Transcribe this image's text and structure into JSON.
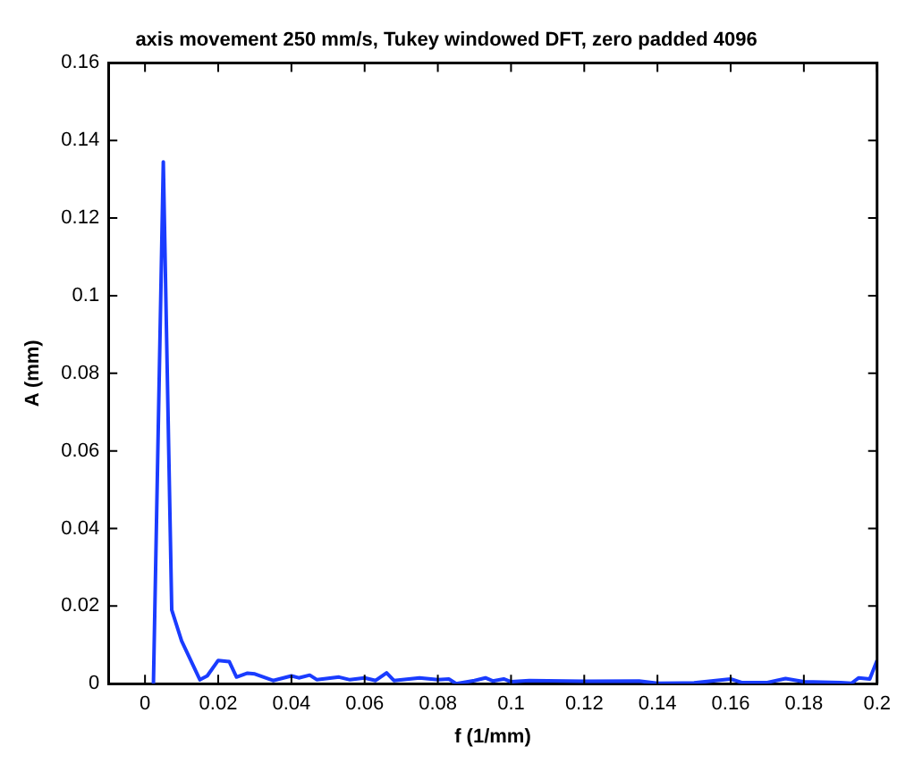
{
  "chart_data": {
    "type": "line",
    "title": "axis movement 250 mm/s, Tukey windowed DFT, zero padded 4096",
    "xlabel": "f (1/mm)",
    "ylabel": "A (mm)",
    "series": [
      {
        "color": "#1a3cff",
        "x": [
          0.0023,
          0.005,
          0.0073,
          0.01,
          0.015,
          0.017,
          0.02,
          0.023,
          0.025,
          0.028,
          0.03,
          0.035,
          0.04,
          0.042,
          0.045,
          0.047,
          0.053,
          0.056,
          0.06,
          0.063,
          0.066,
          0.068,
          0.075,
          0.08,
          0.083,
          0.085,
          0.09,
          0.093,
          0.095,
          0.098,
          0.1,
          0.105,
          0.12,
          0.135,
          0.14,
          0.15,
          0.16,
          0.163,
          0.17,
          0.175,
          0.18,
          0.19,
          0.193,
          0.195,
          0.198,
          0.2
        ],
        "values": [
          0,
          0.1345,
          0.019,
          0.011,
          0.001,
          0.002,
          0.006,
          0.0057,
          0.0017,
          0.0027,
          0.0025,
          0.0008,
          0.002,
          0.0015,
          0.0022,
          0.001,
          0.0017,
          0.001,
          0.0015,
          0.0008,
          0.0028,
          0.0008,
          0.0015,
          0.001,
          0.0012,
          0,
          0.0008,
          0.0015,
          0.0007,
          0.0012,
          0.0005,
          0.0008,
          0.0006,
          0.0007,
          0.0001,
          0.0002,
          0.0012,
          0.0003,
          0.0003,
          0.0013,
          0.0005,
          0.0003,
          0.0001,
          0.0015,
          0.0012,
          0.006
        ]
      }
    ],
    "xlim": [
      -0.01,
      0.2
    ],
    "xticks": [
      0,
      0.02,
      0.04,
      0.06,
      0.08,
      0.1,
      0.12,
      0.14,
      0.16,
      0.18,
      0.2
    ],
    "ylim": [
      0,
      0.16
    ],
    "yticks": [
      0,
      0.02,
      0.04,
      0.06,
      0.08,
      0.1,
      0.12,
      0.14,
      0.16
    ],
    "grid": false,
    "legend": false,
    "marker": "none",
    "line_style": "solid"
  }
}
